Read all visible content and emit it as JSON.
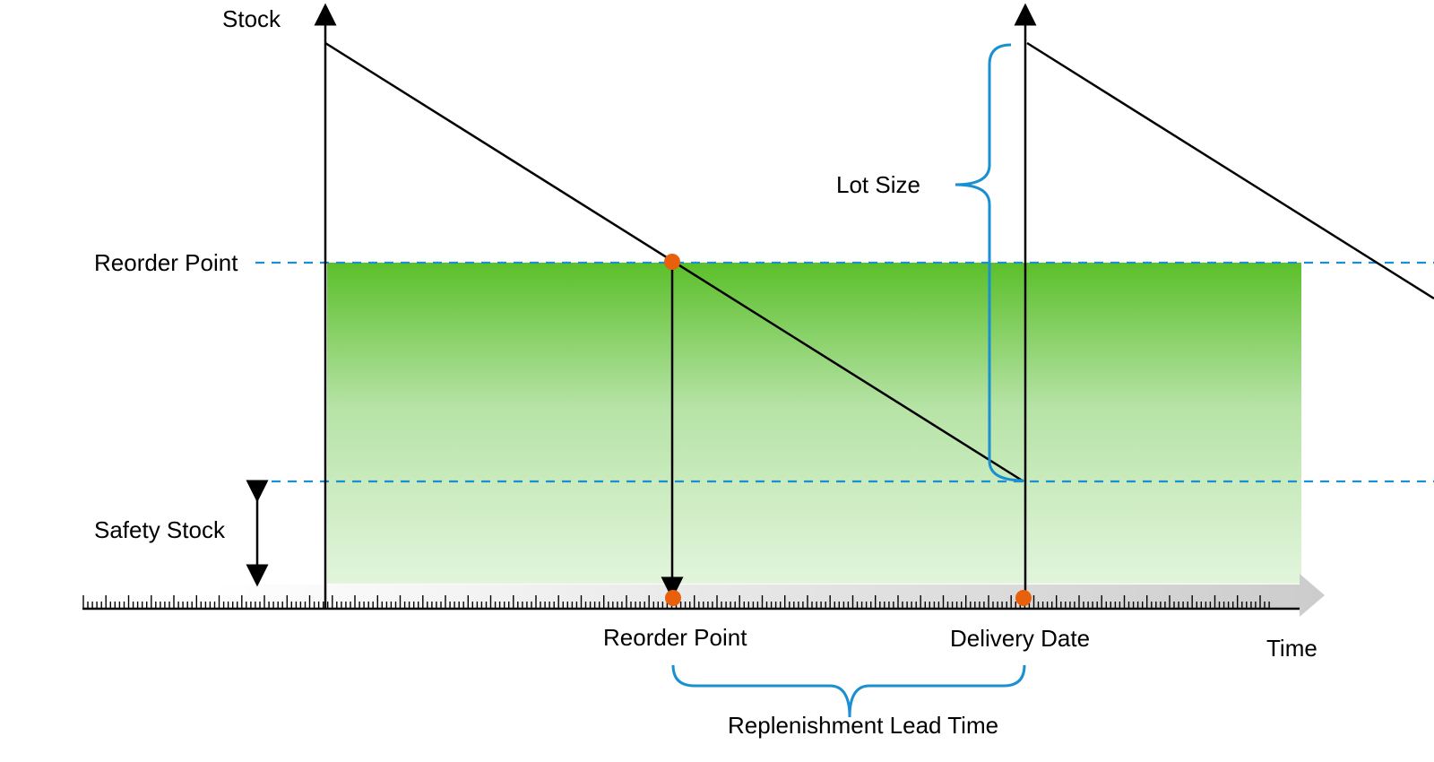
{
  "labels": {
    "stock_axis": "Stock",
    "time_axis": "Time",
    "reorder_point_level": "Reorder Point",
    "safety_stock": "Safety Stock",
    "lot_size": "Lot Size",
    "reorder_point_time": "Reorder Point",
    "delivery_date": "Delivery Date",
    "replenishment_lead_time": "Replenishment Lead Time"
  },
  "colors": {
    "fill_top": "#5bbf2a",
    "fill_bottom": "#e2f5dc",
    "dashed_line": "#1a8fd1",
    "brace": "#1a8fd1",
    "marker": "#e8600c",
    "time_band": "#cccccc"
  }
}
